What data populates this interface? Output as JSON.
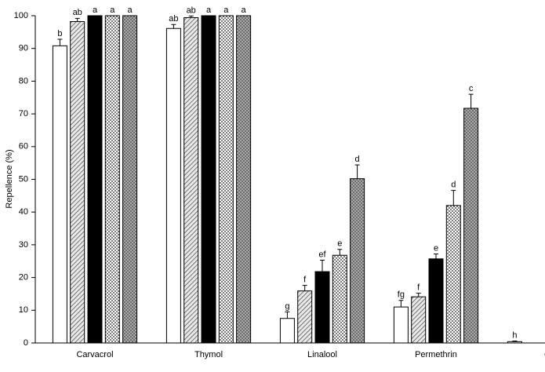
{
  "chart_data": {
    "type": "bar",
    "ylabel": "Repellence (%)",
    "categories": [
      "Carvacrol",
      "Thymol",
      "Linalool",
      "Permethrin",
      "Co"
    ],
    "ylim": [
      0,
      100
    ],
    "yticks": [
      0,
      10,
      20,
      30,
      40,
      50,
      60,
      70,
      80,
      90,
      100
    ],
    "grid": false,
    "series": [
      {
        "color": "#ffffff",
        "pattern": "solid",
        "values": [
          90.8,
          96.1,
          7.5,
          11.0,
          0.4
        ],
        "errors": [
          2.0,
          1.2,
          2.0,
          2.0,
          0.2
        ],
        "letters": [
          "b",
          "ab",
          "g",
          "fg",
          "h"
        ]
      },
      {
        "color": "#d0d0d0",
        "pattern": "hatch",
        "values": [
          98.2,
          99.4,
          15.9,
          14.1,
          null
        ],
        "errors": [
          1.0,
          0.5,
          1.7,
          1.1,
          null
        ],
        "letters": [
          "ab",
          "ab",
          "f",
          "f",
          null
        ]
      },
      {
        "color": "#000000",
        "pattern": "solid",
        "values": [
          100,
          100,
          21.8,
          25.7,
          null
        ],
        "errors": [
          0,
          0,
          3.5,
          1.5,
          null
        ],
        "letters": [
          "a",
          "a",
          "ef",
          "e",
          null
        ]
      },
      {
        "color": "#ffffff",
        "pattern": "dots",
        "values": [
          100,
          100,
          26.8,
          42.0,
          null
        ],
        "errors": [
          0,
          0,
          1.8,
          4.6,
          null
        ],
        "letters": [
          "a",
          "a",
          "e",
          "d",
          null
        ]
      },
      {
        "color": "#8a8a8a",
        "pattern": "dots",
        "values": [
          100,
          100,
          50.2,
          71.7,
          null
        ],
        "errors": [
          0,
          0,
          4.2,
          4.3,
          null
        ],
        "letters": [
          "a",
          "a",
          "d",
          "c",
          null
        ]
      }
    ]
  }
}
